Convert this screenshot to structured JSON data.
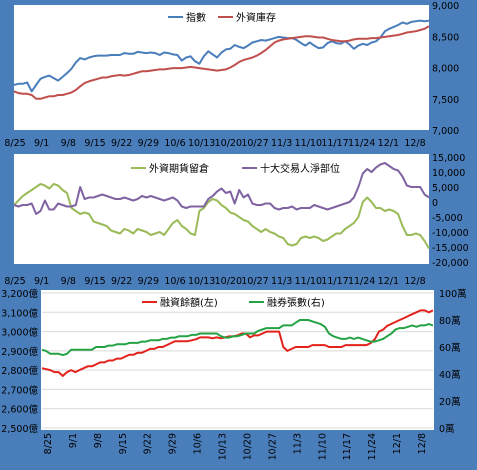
{
  "chart_data": [
    {
      "type": "line",
      "x_labels": [
        "8/25",
        "9/1",
        "9/8",
        "9/15",
        "9/22",
        "9/29",
        "10/6",
        "10/13",
        "10/20",
        "10/27",
        "11/3",
        "11/10",
        "11/17",
        "11/24",
        "12/1",
        "12/8"
      ],
      "y_ticks": [
        "7,000",
        "7,500",
        "8,000",
        "8,500",
        "9,000"
      ],
      "ylim": [
        7000,
        9000
      ],
      "series": [
        {
          "name": "指數",
          "color": "#4a7ebb",
          "values": [
            7720,
            7740,
            7740,
            7760,
            7620,
            7720,
            7820,
            7850,
            7870,
            7830,
            7790,
            7850,
            7910,
            7980,
            8080,
            8150,
            8130,
            8160,
            8180,
            8190,
            8190,
            8190,
            8200,
            8200,
            8200,
            8230,
            8220,
            8220,
            8250,
            8240,
            8230,
            8240,
            8230,
            8200,
            8240,
            8230,
            8210,
            8200,
            8110,
            8160,
            8180,
            8100,
            8060,
            8180,
            8260,
            8210,
            8160,
            8240,
            8290,
            8300,
            8360,
            8330,
            8310,
            8350,
            8400,
            8420,
            8440,
            8430,
            8450,
            8470,
            8490,
            8480,
            8470,
            8470,
            8440,
            8390,
            8350,
            8400,
            8350,
            8310,
            8320,
            8390,
            8420,
            8390,
            8380,
            8420,
            8370,
            8300,
            8350,
            8380,
            8360,
            8400,
            8420,
            8480,
            8580,
            8620,
            8650,
            8680,
            8720,
            8700,
            8730,
            8740,
            8750,
            8740,
            8750
          ]
        },
        {
          "name": "外資庫存",
          "color": "#c0504d",
          "values": [
            7620,
            7590,
            7580,
            7580,
            7560,
            7500,
            7500,
            7520,
            7540,
            7540,
            7560,
            7560,
            7580,
            7600,
            7640,
            7700,
            7750,
            7780,
            7800,
            7820,
            7840,
            7840,
            7860,
            7870,
            7880,
            7870,
            7880,
            7900,
            7920,
            7940,
            7940,
            7950,
            7960,
            7970,
            7970,
            7980,
            7990,
            7990,
            7990,
            8000,
            8010,
            8000,
            7990,
            7980,
            7970,
            7960,
            7950,
            7960,
            7970,
            8000,
            8040,
            8090,
            8120,
            8140,
            8160,
            8190,
            8230,
            8280,
            8340,
            8400,
            8430,
            8450,
            8460,
            8470,
            8480,
            8490,
            8500,
            8500,
            8490,
            8480,
            8480,
            8460,
            8440,
            8430,
            8420,
            8420,
            8430,
            8450,
            8460,
            8460,
            8460,
            8470,
            8470,
            8480,
            8490,
            8500,
            8510,
            8520,
            8540,
            8560,
            8570,
            8580,
            8600,
            8620,
            8660
          ]
        }
      ]
    },
    {
      "type": "line",
      "x_labels": [
        "8/25",
        "9/1",
        "9/8",
        "9/15",
        "9/22",
        "9/29",
        "10/6",
        "10/13",
        "10/20",
        "10/27",
        "11/3",
        "11/10",
        "11/17",
        "11/24",
        "12/1",
        "12/8"
      ],
      "y_ticks": [
        "15,000",
        "10,000",
        "5,000",
        "0",
        "-5,000",
        "-10,000",
        "-15,000",
        "-20,000"
      ],
      "ylim": [
        -20000,
        15000
      ],
      "series": [
        {
          "name": "外資期貨留倉",
          "color": "#9bbb59",
          "values": [
            -1000,
            500,
            2000,
            3000,
            4000,
            5000,
            6000,
            5500,
            4500,
            6000,
            5500,
            4000,
            3000,
            -2000,
            -3000,
            -4000,
            -3500,
            -4000,
            -6500,
            -7000,
            -7500,
            -8000,
            -9500,
            -10000,
            -10500,
            -9000,
            -9500,
            -10500,
            -9000,
            -9500,
            -10000,
            -11000,
            -10500,
            -10000,
            -11000,
            -9000,
            -7000,
            -6000,
            -8000,
            -9000,
            -10500,
            -11000,
            -3000,
            -2000,
            0,
            1000,
            500,
            -1000,
            -2000,
            -3500,
            -4000,
            -5000,
            -6000,
            -6500,
            -8000,
            -9000,
            -10000,
            -9000,
            -10000,
            -10500,
            -11500,
            -12000,
            -14000,
            -14500,
            -14000,
            -12000,
            -11500,
            -12000,
            -11500,
            -12000,
            -13000,
            -12500,
            -11500,
            -10500,
            -10500,
            -9000,
            -8000,
            -7000,
            -5000,
            0,
            1500,
            0,
            -2000,
            -2000,
            -3000,
            -2500,
            -3000,
            -4000,
            -8000,
            -11000,
            -11000,
            -10500,
            -11000,
            -13000,
            -15500
          ]
        },
        {
          "name": "十大交易人淨部位",
          "color": "#8064a2",
          "values": [
            -1000,
            -1500,
            -1000,
            -1000,
            -500,
            -4000,
            -3000,
            500,
            -2500,
            -2500,
            -500,
            -1000,
            -1500,
            -1500,
            -1000,
            5000,
            1000,
            1500,
            1500,
            2000,
            2500,
            2000,
            1500,
            1000,
            1000,
            1500,
            1000,
            500,
            1000,
            2000,
            1500,
            2000,
            1500,
            1000,
            500,
            1000,
            1500,
            500,
            -1500,
            -2000,
            -1500,
            -1500,
            -1500,
            -1500,
            1000,
            2000,
            3500,
            4500,
            3000,
            3500,
            -500,
            4000,
            1500,
            2500,
            -500,
            -1000,
            -1000,
            -500,
            -500,
            -2000,
            -2500,
            -2000,
            -2000,
            -1500,
            -2500,
            -2000,
            -2000,
            -2000,
            -1000,
            -1500,
            -2000,
            -2500,
            -2000,
            -1500,
            -1000,
            -500,
            0,
            1500,
            5000,
            9500,
            11000,
            10000,
            11500,
            12500,
            13000,
            12000,
            11000,
            10500,
            8500,
            5500,
            5000,
            5000,
            5000,
            2500,
            1500
          ]
        }
      ]
    },
    {
      "type": "line",
      "x_labels": [
        "8/25",
        "9/1",
        "9/8",
        "9/15",
        "9/22",
        "9/29",
        "10/6",
        "10/13",
        "10/20",
        "10/27",
        "11/3",
        "11/10",
        "11/17",
        "11/24",
        "12/1",
        "12/8"
      ],
      "y_ticks_left": [
        "3,200億",
        "3,100億",
        "3,000億",
        "2,900億",
        "2,800億",
        "2,700億",
        "2,600億",
        "2,500億"
      ],
      "y_ticks_right": [
        "100萬",
        "80萬",
        "60萬",
        "40萬",
        "20萬",
        "0萬"
      ],
      "ylim_left": [
        2500,
        3200
      ],
      "ylim_right": [
        0,
        100
      ],
      "series": [
        {
          "name": "融資餘額(左)",
          "color": "#e3221b",
          "axis": "left",
          "values": [
            2810,
            2805,
            2800,
            2790,
            2790,
            2770,
            2790,
            2800,
            2790,
            2800,
            2810,
            2820,
            2820,
            2830,
            2840,
            2840,
            2850,
            2850,
            2860,
            2860,
            2870,
            2880,
            2880,
            2890,
            2890,
            2900,
            2910,
            2910,
            2920,
            2920,
            2930,
            2940,
            2950,
            2950,
            2950,
            2950,
            2955,
            2960,
            2970,
            2970,
            2970,
            2965,
            2970,
            2965,
            2970,
            2975,
            2975,
            2980,
            2990,
            2990,
            2970,
            2980,
            2980,
            2990,
            3000,
            3000,
            3000,
            3000,
            2920,
            2900,
            2910,
            2920,
            2920,
            2920,
            2920,
            2930,
            2930,
            2930,
            2930,
            2920,
            2920,
            2920,
            2920,
            2930,
            2930,
            2930,
            2930,
            2930,
            2930,
            2940,
            2960,
            3000,
            3010,
            3030,
            3040,
            3050,
            3060,
            3070,
            3080,
            3090,
            3100,
            3110,
            3110,
            3100,
            3110
          ]
        },
        {
          "name": "融券張數(右)",
          "color": "#25a244",
          "axis": "right",
          "values": [
            58,
            57,
            55,
            55,
            55,
            54,
            55,
            58,
            58,
            58,
            58,
            58,
            58,
            60,
            60,
            60,
            61,
            61,
            62,
            62,
            62,
            63,
            63,
            63,
            64,
            64,
            65,
            65,
            65,
            66,
            66,
            67,
            67,
            68,
            68,
            68,
            69,
            69,
            70,
            70,
            70,
            70,
            70,
            68,
            67,
            67,
            68,
            68,
            69,
            70,
            70,
            70,
            72,
            73,
            74,
            74,
            74,
            74,
            76,
            76,
            76,
            78,
            80,
            80,
            80,
            79,
            78,
            77,
            75,
            70,
            68,
            67,
            66,
            66,
            67,
            66,
            67,
            66,
            65,
            64,
            64,
            65,
            66,
            68,
            70,
            73,
            74,
            74,
            75,
            76,
            75,
            76,
            76,
            77,
            76
          ]
        }
      ]
    }
  ]
}
